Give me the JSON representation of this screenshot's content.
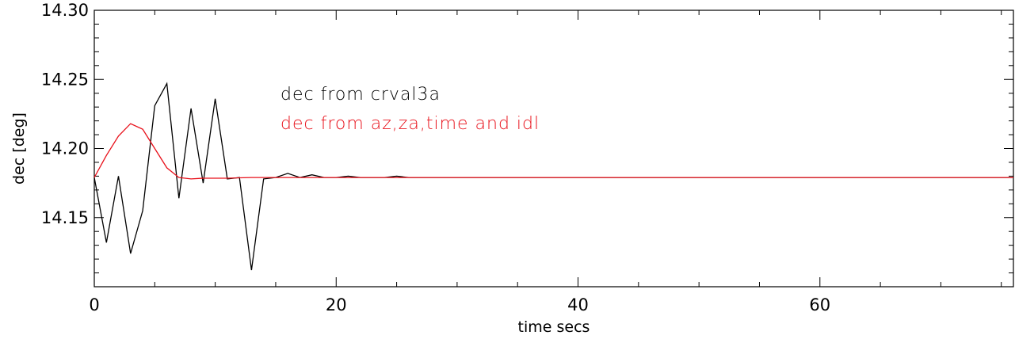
{
  "chart_data": {
    "type": "line",
    "xlabel": "time secs",
    "ylabel": "dec [deg]",
    "xlim": [
      0,
      76
    ],
    "ylim": [
      14.1,
      14.3
    ],
    "x_ticks": [
      0,
      20,
      40,
      60
    ],
    "x_tick_labels": [
      "0",
      "20",
      "40",
      "60"
    ],
    "y_ticks": [
      14.15,
      14.2,
      14.25,
      14.3
    ],
    "y_tick_labels": [
      "14.15",
      "14.20",
      "14.25",
      "14.30"
    ],
    "grid": false,
    "annotations": [
      {
        "text": "dec from crval3a",
        "color": "#000000"
      },
      {
        "text": "dec from az,za,time and idl",
        "color": "#e8101a"
      }
    ],
    "series": [
      {
        "color": "#000000",
        "x": [
          0,
          1,
          2,
          3,
          4,
          5,
          6,
          7,
          8,
          9,
          10,
          11,
          12,
          13,
          14,
          15,
          16,
          17,
          18,
          19,
          20,
          21,
          22,
          23,
          24,
          25,
          26,
          27,
          28,
          29,
          30,
          31,
          32,
          33,
          34,
          35,
          36,
          37,
          38,
          39,
          40,
          41,
          42,
          43,
          44,
          45,
          46,
          47,
          48,
          49,
          50,
          51,
          52,
          53,
          54,
          55,
          56,
          57,
          58,
          59,
          60,
          61,
          62,
          63,
          64,
          65,
          66,
          67,
          68,
          69,
          70,
          71,
          72,
          73,
          74,
          75,
          76
        ],
        "y": [
          14.179,
          14.132,
          14.18,
          14.124,
          14.155,
          14.231,
          14.247,
          14.164,
          14.229,
          14.175,
          14.236,
          14.178,
          14.179,
          14.112,
          14.178,
          14.179,
          14.182,
          14.179,
          14.181,
          14.179,
          14.179,
          14.18,
          14.179,
          14.179,
          14.179,
          14.18,
          14.179,
          14.179,
          14.179,
          14.179,
          14.179,
          14.179,
          14.179,
          14.179,
          14.179,
          14.179,
          14.179,
          14.179,
          14.179,
          14.179,
          14.179,
          14.179,
          14.179,
          14.179,
          14.179,
          14.179,
          14.179,
          14.179,
          14.179,
          14.179,
          14.179,
          14.179,
          14.179,
          14.179,
          14.179,
          14.179,
          14.179,
          14.179,
          14.179,
          14.179,
          14.179,
          14.179,
          14.179,
          14.179,
          14.179,
          14.179,
          14.179,
          14.179,
          14.179,
          14.179,
          14.179,
          14.179,
          14.179,
          14.179,
          14.179,
          14.179,
          14.179
        ]
      },
      {
        "color": "#e8101a",
        "x": [
          0,
          1,
          2,
          3,
          4,
          5,
          6,
          7,
          8,
          9,
          10,
          11,
          12,
          13,
          14,
          15,
          16,
          17,
          18,
          19,
          20,
          21,
          22,
          23,
          24,
          25,
          26,
          27,
          28,
          29,
          30,
          31,
          32,
          33,
          34,
          35,
          36,
          37,
          38,
          39,
          40,
          41,
          42,
          43,
          44,
          45,
          46,
          47,
          48,
          49,
          50,
          51,
          52,
          53,
          54,
          55,
          56,
          57,
          58,
          59,
          60,
          61,
          62,
          63,
          64,
          65,
          66,
          67,
          68,
          69,
          70,
          71,
          72,
          73,
          74,
          75,
          76
        ],
        "y": [
          14.179,
          14.195,
          14.209,
          14.218,
          14.214,
          14.2,
          14.186,
          14.179,
          14.178,
          14.1785,
          14.1785,
          14.1785,
          14.1788,
          14.179,
          14.179,
          14.179,
          14.179,
          14.179,
          14.179,
          14.179,
          14.179,
          14.179,
          14.179,
          14.179,
          14.179,
          14.179,
          14.179,
          14.179,
          14.179,
          14.179,
          14.179,
          14.179,
          14.179,
          14.179,
          14.179,
          14.179,
          14.179,
          14.179,
          14.179,
          14.179,
          14.179,
          14.179,
          14.179,
          14.179,
          14.179,
          14.179,
          14.179,
          14.179,
          14.179,
          14.179,
          14.179,
          14.179,
          14.179,
          14.179,
          14.179,
          14.179,
          14.179,
          14.179,
          14.179,
          14.179,
          14.179,
          14.179,
          14.179,
          14.179,
          14.179,
          14.179,
          14.179,
          14.179,
          14.179,
          14.179,
          14.179,
          14.179,
          14.179,
          14.179,
          14.179,
          14.179,
          14.179
        ]
      }
    ]
  }
}
